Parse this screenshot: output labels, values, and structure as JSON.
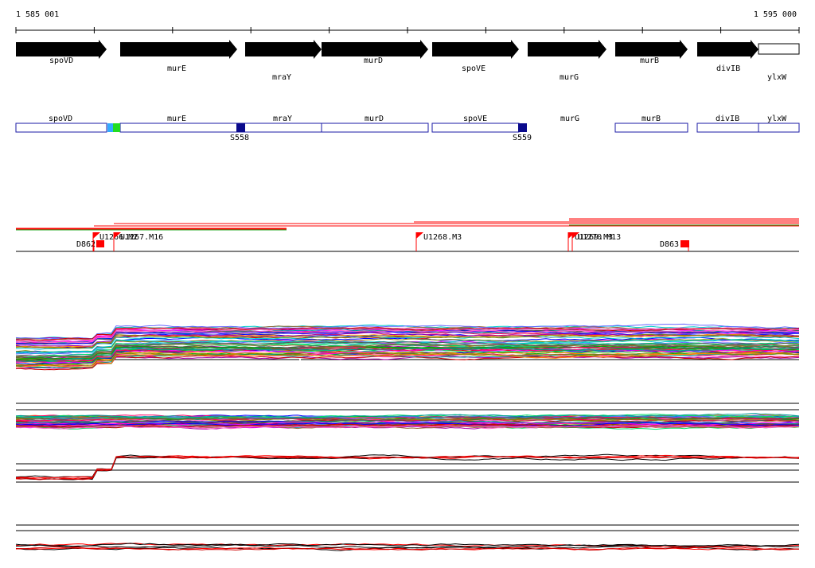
{
  "coordinates": {
    "start": "1 585 001",
    "end": "1 595 000"
  },
  "genes": [
    {
      "name": "spoVD",
      "kind": "arrow",
      "label_row": "top"
    },
    {
      "name": "murE",
      "kind": "arrow",
      "label_row": "mid"
    },
    {
      "name": "mraY",
      "kind": "arrow",
      "label_row": "low"
    },
    {
      "name": "murD",
      "kind": "arrow",
      "label_row": "top"
    },
    {
      "name": "spoVE",
      "kind": "arrow",
      "label_row": "mid"
    },
    {
      "name": "murG",
      "kind": "arrow",
      "label_row": "low"
    },
    {
      "name": "murB",
      "kind": "arrow",
      "label_row": "top"
    },
    {
      "name": "divIB",
      "kind": "arrow",
      "label_row": "mid"
    },
    {
      "name": "ylxW",
      "kind": "box",
      "label_row": "low"
    }
  ],
  "gene_boxes": [
    "spoVD",
    "murE",
    "mraY",
    "murD",
    "spoVE",
    "murG",
    "murB",
    "divIB",
    "ylxW"
  ],
  "sites": [
    {
      "label": "S558",
      "color": "#0a0a8c"
    },
    {
      "label": "S559",
      "color": "#0a0a8c"
    }
  ],
  "tss_markers": [
    "D862",
    "U1266.M2",
    "U1267.M16",
    "U1268.M3",
    "U1269.M3",
    "U1270.M13",
    "D863"
  ],
  "colors": {
    "accent_red": "#ff0000",
    "gene_blue": "#1a1aa6",
    "site_blue": "#0a0a8c",
    "green": "#22cc22",
    "cyan": "#33aaff"
  }
}
